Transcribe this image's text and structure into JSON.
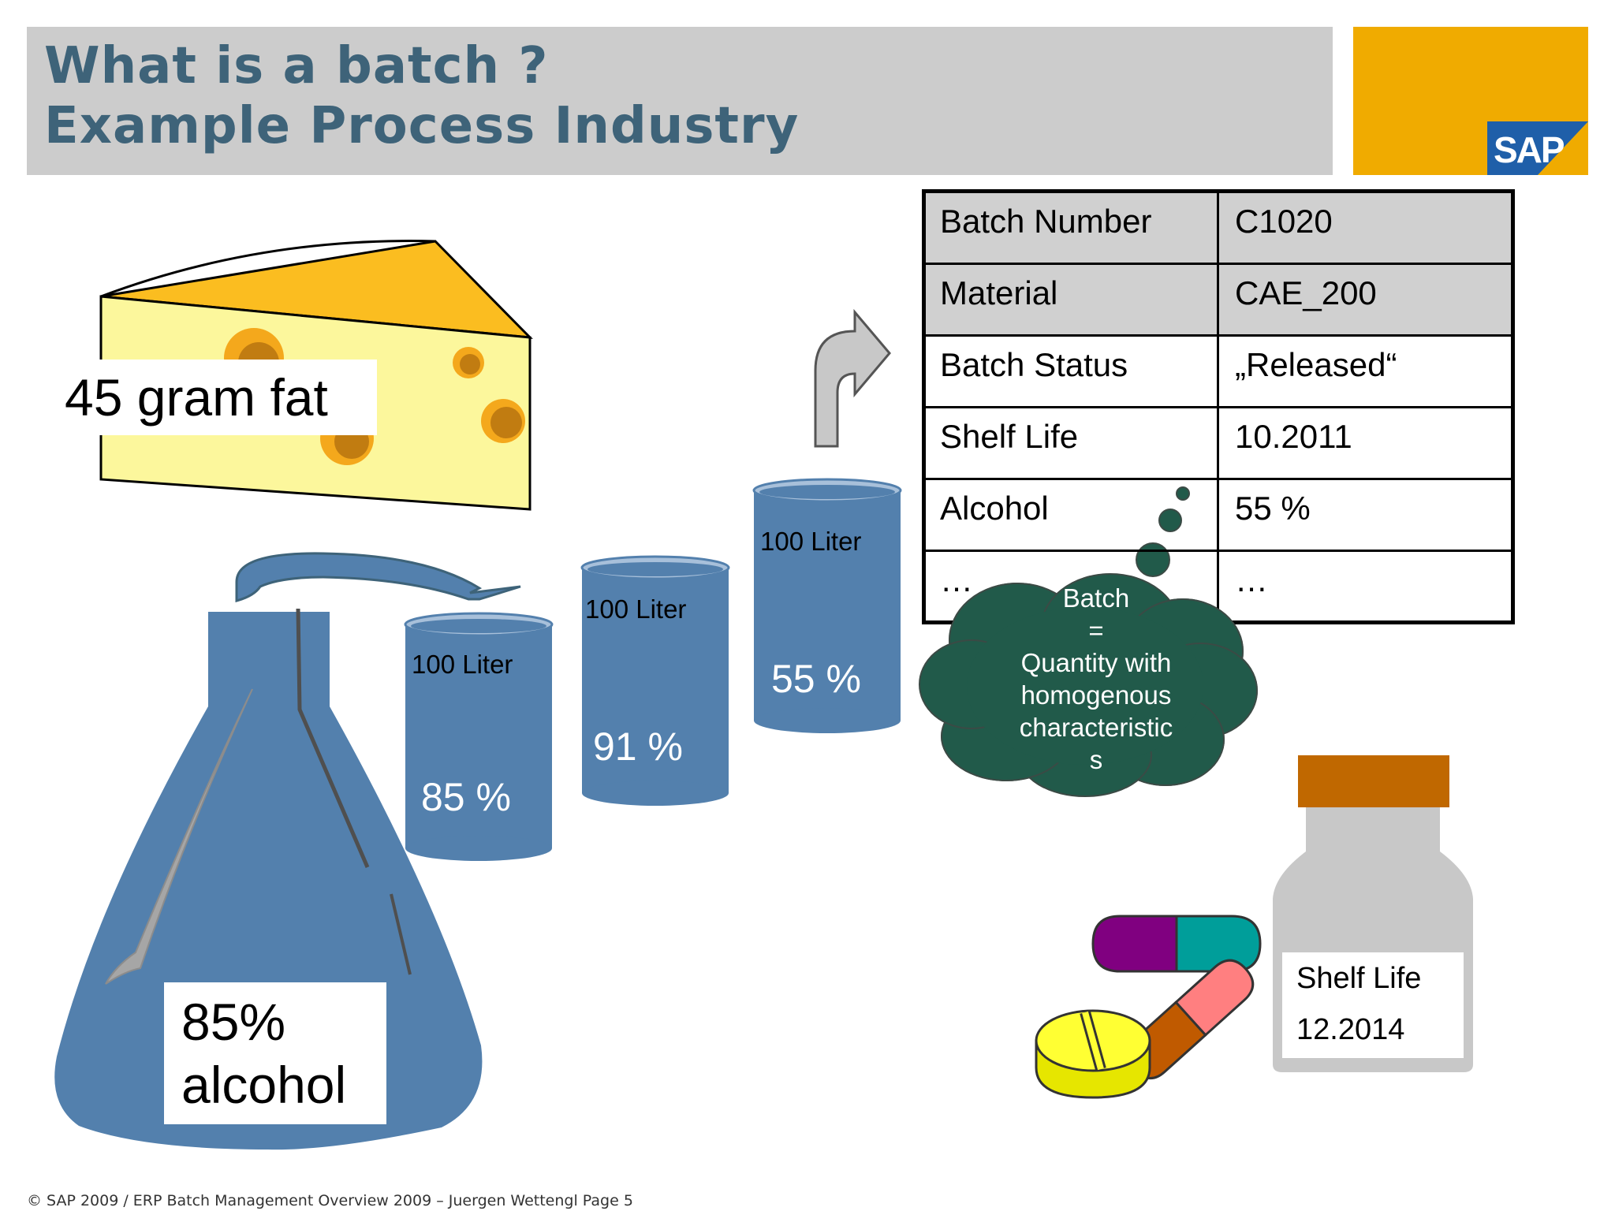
{
  "slide": {
    "title_line1": "What is a batch ?",
    "title_line2": "Example Process Industry",
    "logo_text": "SAP"
  },
  "cheese": {
    "label": "45 gram fat"
  },
  "flask": {
    "label_line1": "85%",
    "label_line2": "alcohol"
  },
  "tanks": [
    {
      "volume": "100 Liter",
      "percent": "85 %"
    },
    {
      "volume": "100 Liter",
      "percent": "91 %"
    },
    {
      "volume": "100 Liter",
      "percent": "55 %"
    }
  ],
  "batch_table": {
    "rows": [
      {
        "key": "Batch Number",
        "value": "C1020"
      },
      {
        "key": "Material",
        "value": "CAE_200"
      },
      {
        "key": "Batch Status",
        "value": "„Released“"
      },
      {
        "key": "Shelf Life",
        "value": "10.2011"
      },
      {
        "key": "Alcohol",
        "value": "55 %"
      },
      {
        "key": "…",
        "value": "…"
      }
    ]
  },
  "cloud": {
    "lines": [
      "Batch",
      "=",
      "Quantity with",
      "homogenous",
      "characteristic",
      "s"
    ]
  },
  "medicine_bottle": {
    "label_line1": "Shelf Life",
    "label_line2": "12.2014"
  },
  "footer": {
    "text": "© SAP 2009 / ERP Batch Management Overview  2009 – Juergen Wettengl Page 5"
  },
  "colors": {
    "title": "#3e6379",
    "header_band": "#cccccc",
    "logo_block": "#f0ab00",
    "logo_blue": "#1f5fa9",
    "tank_blue": "#5380ad",
    "cloud_green": "#215a4a",
    "cheese_yellow": "#fcf79c",
    "cheese_rind": "#fbbd20",
    "bottle_cap": "#c06800"
  }
}
